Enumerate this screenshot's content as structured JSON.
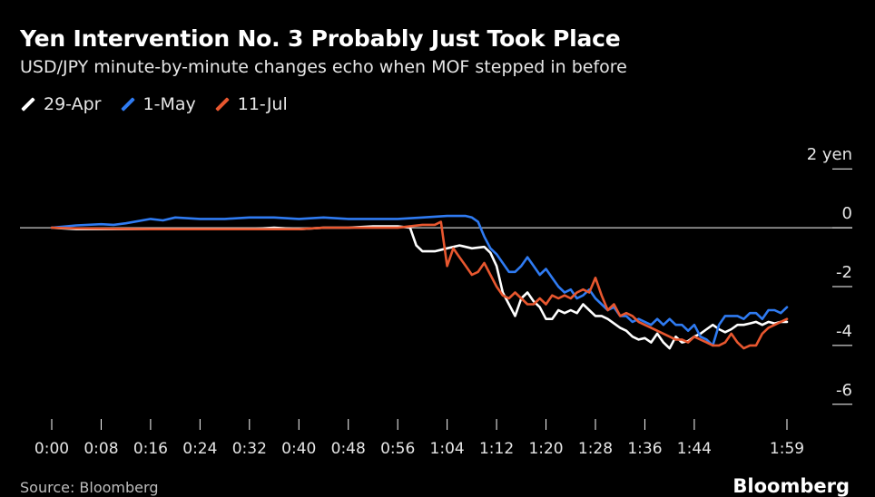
{
  "chart_data": {
    "type": "line",
    "title": "Yen Intervention No. 3 Probably Just Took Place",
    "subtitle": "USD/JPY minute-by-minute changes echo when MOF stepped in before",
    "x_ticks": [
      "0:00",
      "0:08",
      "0:16",
      "0:24",
      "0:32",
      "0:40",
      "0:48",
      "0:56",
      "1:04",
      "1:12",
      "1:20",
      "1:28",
      "1:36",
      "1:44",
      "1:59"
    ],
    "y_ticks": [
      2,
      0,
      -2,
      -4,
      -6
    ],
    "y_unit": "yen",
    "xlim": [
      0,
      119
    ],
    "ylim": [
      -6.5,
      2.5
    ],
    "zero_line": true,
    "grid": false,
    "legend_position": "top-left",
    "series": [
      {
        "name": "29-Apr",
        "color": "#ffffff",
        "points": [
          [
            0,
            0
          ],
          [
            4,
            -0.05
          ],
          [
            8,
            -0.05
          ],
          [
            12,
            -0.05
          ],
          [
            16,
            -0.05
          ],
          [
            20,
            -0.05
          ],
          [
            24,
            -0.05
          ],
          [
            28,
            -0.05
          ],
          [
            32,
            -0.05
          ],
          [
            36,
            0
          ],
          [
            40,
            -0.05
          ],
          [
            44,
            0
          ],
          [
            48,
            0
          ],
          [
            52,
            0.05
          ],
          [
            56,
            0.05
          ],
          [
            58,
            0
          ],
          [
            59,
            -0.6
          ],
          [
            60,
            -0.8
          ],
          [
            62,
            -0.8
          ],
          [
            64,
            -0.7
          ],
          [
            66,
            -0.6
          ],
          [
            68,
            -0.7
          ],
          [
            70,
            -0.65
          ],
          [
            71,
            -0.85
          ],
          [
            72,
            -1.3
          ],
          [
            73,
            -2.2
          ],
          [
            74,
            -2.6
          ],
          [
            75,
            -3.0
          ],
          [
            76,
            -2.4
          ],
          [
            77,
            -2.2
          ],
          [
            78,
            -2.5
          ],
          [
            79,
            -2.7
          ],
          [
            80,
            -3.1
          ],
          [
            81,
            -3.1
          ],
          [
            82,
            -2.8
          ],
          [
            83,
            -2.9
          ],
          [
            84,
            -2.8
          ],
          [
            85,
            -2.9
          ],
          [
            86,
            -2.6
          ],
          [
            87,
            -2.8
          ],
          [
            88,
            -3.0
          ],
          [
            89,
            -3.0
          ],
          [
            90,
            -3.1
          ],
          [
            92,
            -3.4
          ],
          [
            93,
            -3.5
          ],
          [
            94,
            -3.7
          ],
          [
            95,
            -3.8
          ],
          [
            96,
            -3.75
          ],
          [
            97,
            -3.9
          ],
          [
            98,
            -3.6
          ],
          [
            99,
            -3.9
          ],
          [
            100,
            -4.1
          ],
          [
            101,
            -3.7
          ],
          [
            102,
            -3.9
          ],
          [
            103,
            -3.85
          ],
          [
            104,
            -3.7
          ],
          [
            105,
            -3.6
          ],
          [
            106,
            -3.45
          ],
          [
            107,
            -3.3
          ],
          [
            108,
            -3.45
          ],
          [
            109,
            -3.55
          ],
          [
            110,
            -3.45
          ],
          [
            111,
            -3.3
          ],
          [
            112,
            -3.3
          ],
          [
            113,
            -3.25
          ],
          [
            114,
            -3.2
          ],
          [
            115,
            -3.3
          ],
          [
            116,
            -3.2
          ],
          [
            117,
            -3.25
          ],
          [
            118,
            -3.2
          ],
          [
            119,
            -3.2
          ]
        ]
      },
      {
        "name": "1-May",
        "color": "#2f7bf2",
        "points": [
          [
            0,
            0
          ],
          [
            4,
            0.08
          ],
          [
            8,
            0.12
          ],
          [
            10,
            0.1
          ],
          [
            12,
            0.15
          ],
          [
            16,
            0.3
          ],
          [
            18,
            0.25
          ],
          [
            20,
            0.35
          ],
          [
            24,
            0.3
          ],
          [
            28,
            0.3
          ],
          [
            32,
            0.35
          ],
          [
            36,
            0.35
          ],
          [
            40,
            0.3
          ],
          [
            44,
            0.35
          ],
          [
            48,
            0.3
          ],
          [
            52,
            0.3
          ],
          [
            56,
            0.3
          ],
          [
            60,
            0.35
          ],
          [
            64,
            0.4
          ],
          [
            67,
            0.4
          ],
          [
            68,
            0.35
          ],
          [
            69,
            0.2
          ],
          [
            70,
            -0.3
          ],
          [
            71,
            -0.7
          ],
          [
            72,
            -0.9
          ],
          [
            73,
            -1.2
          ],
          [
            74,
            -1.5
          ],
          [
            75,
            -1.5
          ],
          [
            76,
            -1.3
          ],
          [
            77,
            -1.0
          ],
          [
            78,
            -1.3
          ],
          [
            79,
            -1.6
          ],
          [
            80,
            -1.4
          ],
          [
            81,
            -1.7
          ],
          [
            82,
            -2.0
          ],
          [
            83,
            -2.2
          ],
          [
            84,
            -2.1
          ],
          [
            85,
            -2.4
          ],
          [
            86,
            -2.3
          ],
          [
            87,
            -2.1
          ],
          [
            88,
            -2.4
          ],
          [
            89,
            -2.6
          ],
          [
            90,
            -2.8
          ],
          [
            91,
            -2.7
          ],
          [
            92,
            -3.0
          ],
          [
            93,
            -3.0
          ],
          [
            94,
            -3.2
          ],
          [
            95,
            -3.1
          ],
          [
            96,
            -3.2
          ],
          [
            97,
            -3.3
          ],
          [
            98,
            -3.1
          ],
          [
            99,
            -3.3
          ],
          [
            100,
            -3.1
          ],
          [
            101,
            -3.3
          ],
          [
            102,
            -3.3
          ],
          [
            103,
            -3.5
          ],
          [
            104,
            -3.3
          ],
          [
            105,
            -3.7
          ],
          [
            106,
            -3.8
          ],
          [
            107,
            -4.0
          ],
          [
            108,
            -3.3
          ],
          [
            109,
            -3.0
          ],
          [
            110,
            -3.0
          ],
          [
            111,
            -3.0
          ],
          [
            112,
            -3.1
          ],
          [
            113,
            -2.9
          ],
          [
            114,
            -2.9
          ],
          [
            115,
            -3.1
          ],
          [
            116,
            -2.8
          ],
          [
            117,
            -2.8
          ],
          [
            118,
            -2.9
          ],
          [
            119,
            -2.7
          ]
        ]
      },
      {
        "name": "11-Jul",
        "color": "#e8572f",
        "points": [
          [
            0,
            0
          ],
          [
            4,
            -0.02
          ],
          [
            8,
            -0.03
          ],
          [
            12,
            -0.04
          ],
          [
            16,
            -0.05
          ],
          [
            20,
            -0.05
          ],
          [
            24,
            -0.05
          ],
          [
            28,
            -0.05
          ],
          [
            32,
            -0.05
          ],
          [
            36,
            -0.05
          ],
          [
            40,
            -0.05
          ],
          [
            44,
            0
          ],
          [
            48,
            0
          ],
          [
            52,
            0
          ],
          [
            56,
            0
          ],
          [
            60,
            0.1
          ],
          [
            62,
            0.1
          ],
          [
            63,
            0.2
          ],
          [
            64,
            -1.3
          ],
          [
            65,
            -0.7
          ],
          [
            66,
            -1.0
          ],
          [
            67,
            -1.3
          ],
          [
            68,
            -1.6
          ],
          [
            69,
            -1.5
          ],
          [
            70,
            -1.2
          ],
          [
            71,
            -1.6
          ],
          [
            72,
            -2.0
          ],
          [
            73,
            -2.3
          ],
          [
            74,
            -2.4
          ],
          [
            75,
            -2.2
          ],
          [
            76,
            -2.4
          ],
          [
            77,
            -2.6
          ],
          [
            78,
            -2.6
          ],
          [
            79,
            -2.4
          ],
          [
            80,
            -2.6
          ],
          [
            81,
            -2.3
          ],
          [
            82,
            -2.4
          ],
          [
            83,
            -2.3
          ],
          [
            84,
            -2.4
          ],
          [
            85,
            -2.2
          ],
          [
            86,
            -2.1
          ],
          [
            87,
            -2.2
          ],
          [
            88,
            -1.7
          ],
          [
            89,
            -2.3
          ],
          [
            90,
            -2.8
          ],
          [
            91,
            -2.6
          ],
          [
            92,
            -3.0
          ],
          [
            93,
            -2.9
          ],
          [
            94,
            -3.0
          ],
          [
            95,
            -3.2
          ],
          [
            96,
            -3.3
          ],
          [
            97,
            -3.4
          ],
          [
            98,
            -3.5
          ],
          [
            99,
            -3.6
          ],
          [
            100,
            -3.7
          ],
          [
            101,
            -3.8
          ],
          [
            102,
            -3.8
          ],
          [
            103,
            -3.9
          ],
          [
            104,
            -3.7
          ],
          [
            105,
            -3.8
          ],
          [
            106,
            -3.9
          ],
          [
            107,
            -4.0
          ],
          [
            108,
            -4.0
          ],
          [
            109,
            -3.9
          ],
          [
            110,
            -3.6
          ],
          [
            111,
            -3.9
          ],
          [
            112,
            -4.1
          ],
          [
            113,
            -4.0
          ],
          [
            114,
            -4.0
          ],
          [
            115,
            -3.6
          ],
          [
            116,
            -3.4
          ],
          [
            117,
            -3.3
          ],
          [
            118,
            -3.2
          ],
          [
            119,
            -3.1
          ]
        ]
      }
    ]
  },
  "legend": [
    {
      "label": "29-Apr",
      "color": "#ffffff"
    },
    {
      "label": "1-May",
      "color": "#2f7bf2"
    },
    {
      "label": "11-Jul",
      "color": "#e8572f"
    }
  ],
  "footer": {
    "source": "Source: Bloomberg",
    "brand": "Bloomberg"
  }
}
